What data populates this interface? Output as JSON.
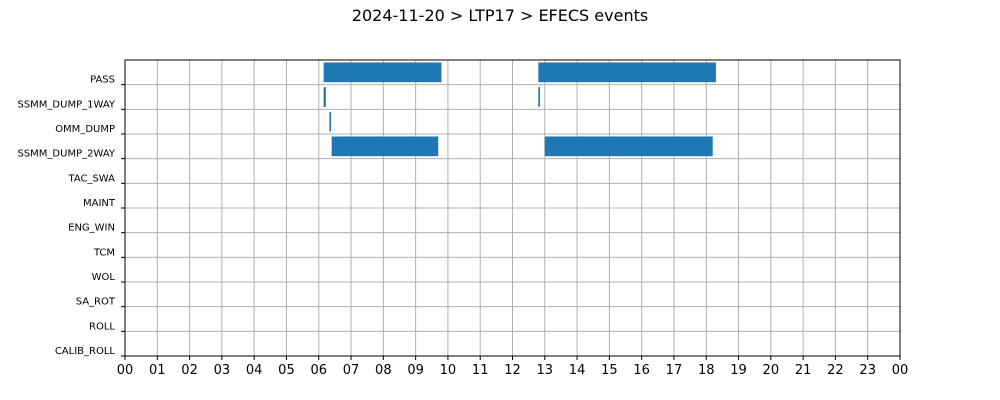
{
  "chart_data": {
    "type": "bar",
    "orientation": "horizontal-timeline",
    "title": "2024-11-20 > LTP17 > EFECS events",
    "xlabel": "",
    "ylabel": "",
    "xlim": [
      0,
      24
    ],
    "x_tick_labels": [
      "00",
      "01",
      "02",
      "03",
      "04",
      "05",
      "06",
      "07",
      "08",
      "09",
      "10",
      "11",
      "12",
      "13",
      "14",
      "15",
      "16",
      "17",
      "18",
      "19",
      "20",
      "21",
      "22",
      "23",
      "00"
    ],
    "categories": [
      "PASS",
      "SSMM_DUMP_1WAY",
      "OMM_DUMP",
      "SSMM_DUMP_2WAY",
      "TAC_SWA",
      "MAINT",
      "ENG_WIN",
      "TCM",
      "WOL",
      "SA_ROT",
      "ROLL",
      "CALIB_ROLL"
    ],
    "grid": true,
    "bar_color": "#1f77b4",
    "events": [
      {
        "category": "PASS",
        "start": 6.15,
        "end": 9.8
      },
      {
        "category": "PASS",
        "start": 12.8,
        "end": 18.3
      },
      {
        "category": "SSMM_DUMP_1WAY",
        "start": 6.15,
        "end": 6.22
      },
      {
        "category": "SSMM_DUMP_1WAY",
        "start": 12.8,
        "end": 12.85
      },
      {
        "category": "OMM_DUMP",
        "start": 6.33,
        "end": 6.38
      },
      {
        "category": "SSMM_DUMP_2WAY",
        "start": 6.4,
        "end": 9.7
      },
      {
        "category": "SSMM_DUMP_2WAY",
        "start": 13.0,
        "end": 18.2
      }
    ]
  }
}
